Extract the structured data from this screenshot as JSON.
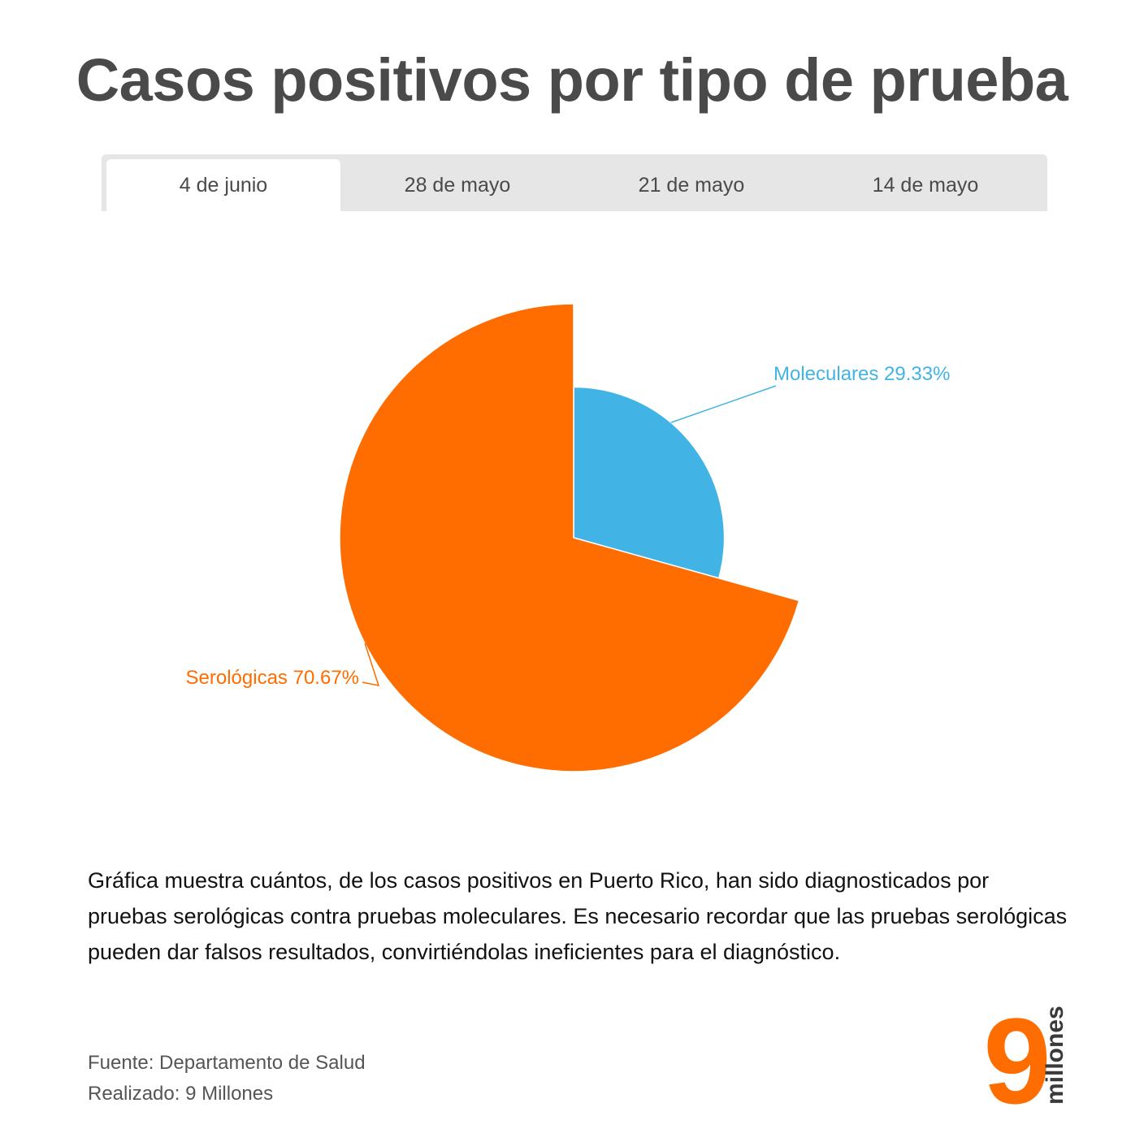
{
  "title": "Casos positivos por tipo de prueba",
  "tabs": [
    {
      "label": "4 de junio",
      "active": true
    },
    {
      "label": "28 de mayo",
      "active": false
    },
    {
      "label": "21 de mayo",
      "active": false
    },
    {
      "label": "14 de mayo",
      "active": false
    }
  ],
  "chart_data": {
    "type": "pie",
    "title": "",
    "slices": [
      {
        "name": "Moleculares",
        "value": 29.33,
        "label": "Moleculares 29.33%",
        "color": "#41b4e5"
      },
      {
        "name": "Serológicas",
        "value": 70.67,
        "label": "Serológicas 70.67%",
        "color": "#ff6c00"
      }
    ],
    "variable_radius": true
  },
  "description": "Gráfica muestra cuántos, de los casos positivos en Puerto Rico, han sido diagnosticados por pruebas serológicas contra pruebas moleculares. Es necesario recordar que las pruebas serológicas pueden dar falsos resultados, convirtiéndolas ineficientes para el diagnóstico.",
  "credits": {
    "source": "Fuente: Departamento de Salud",
    "made_by": "Realizado: 9 Millones"
  },
  "logo": {
    "number": "9",
    "word": "millones",
    "color": "#ff6c00"
  }
}
